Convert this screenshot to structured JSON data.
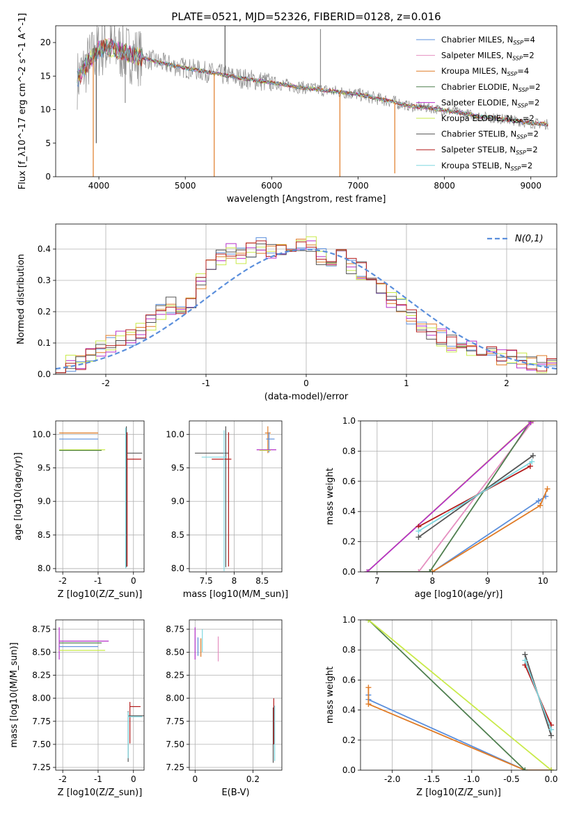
{
  "figure": {
    "title": "PLATE=0521, MJD=52326, FIBERID=0128, z=0.016"
  },
  "colors": {
    "chabrier_miles": "#5b8fdc",
    "salpeter_miles": "#e58fc0",
    "kroupa_miles": "#e07b26",
    "chabrier_elodie": "#4f7f4f",
    "salpeter_elodie": "#b52fc8",
    "kroupa_elodie": "#c9ea4a",
    "chabrier_stelib": "#555555",
    "salpeter_stelib": "#b31b1b",
    "kroupa_stelib": "#7fd8e0",
    "data": "#8a8a8a",
    "normal_curve": "#5b8fdc",
    "grid": "#b0b0b0"
  },
  "chart_data": [
    {
      "id": "spectrum",
      "type": "line",
      "xlabel": "wavelength [Angstrom, rest frame]",
      "ylabel": "Flux [f_λ10^-17 erg cm^-2 s^-1 A^-1]",
      "xlim": [
        3500,
        9300
      ],
      "ylim": [
        0,
        22.5
      ],
      "xticks": [
        4000,
        5000,
        6000,
        7000,
        8000,
        9000
      ],
      "yticks": [
        0,
        5,
        10,
        15,
        20
      ],
      "grid": false,
      "legend_position": "top-right",
      "series": [
        {
          "name": "Chabrier MILES, N_SSP=4",
          "color_key": "chabrier_miles"
        },
        {
          "name": "Salpeter MILES, N_SSP=2",
          "color_key": "salpeter_miles"
        },
        {
          "name": "Kroupa MILES, N_SSP=4",
          "color_key": "kroupa_miles"
        },
        {
          "name": "Chabrier ELODIE, N_SSP=2",
          "color_key": "chabrier_elodie"
        },
        {
          "name": "Salpeter ELODIE, N_SSP=2",
          "color_key": "salpeter_elodie"
        },
        {
          "name": "Kroupa ELODIE, N_SSP=2",
          "color_key": "kroupa_elodie"
        },
        {
          "name": "Chabrier STELIB, N_SSP=2",
          "color_key": "chabrier_stelib"
        },
        {
          "name": "Salpeter STELIB, N_SSP=2",
          "color_key": "salpeter_stelib"
        },
        {
          "name": "Kroupa STELIB, N_SSP=2",
          "color_key": "kroupa_stelib"
        }
      ],
      "continuum": {
        "x": [
          3750,
          3900,
          4000,
          4100,
          4200,
          4300,
          4500,
          4700,
          5000,
          5300,
          5600,
          6000,
          6300,
          6600,
          6800,
          7000,
          7200,
          7400,
          7600,
          7800,
          8000,
          8200,
          8400,
          8600,
          8800,
          9000,
          9200
        ],
        "y": [
          14.5,
          17.5,
          19.0,
          19.3,
          19.0,
          18.5,
          17.8,
          17.0,
          16.2,
          15.5,
          14.8,
          14.0,
          13.4,
          12.9,
          12.6,
          12.3,
          11.7,
          11.2,
          10.5,
          10.3,
          9.9,
          9.5,
          9.0,
          8.7,
          8.4,
          8.0,
          7.8
        ]
      },
      "spikes": [
        {
          "x": 3935,
          "y": 0,
          "color_key": "kroupa_miles"
        },
        {
          "x": 3970,
          "y": 5.0,
          "color_key": "chabrier_stelib"
        },
        {
          "x": 4305,
          "y": 11.0,
          "color_key": "data"
        },
        {
          "x": 5335,
          "y": 0,
          "color_key": "kroupa_miles"
        },
        {
          "x": 5460,
          "y": 22.5,
          "color_key": "chabrier_stelib"
        },
        {
          "x": 6565,
          "y": 22.0,
          "color_key": "data"
        },
        {
          "x": 6790,
          "y": 0,
          "color_key": "kroupa_miles"
        },
        {
          "x": 7425,
          "y": 0.5,
          "color_key": "kroupa_miles"
        }
      ]
    },
    {
      "id": "residuals",
      "type": "bar",
      "xlabel": "(data-model)/error",
      "ylabel": "Normed distribution",
      "xlim": [
        -2.5,
        2.5
      ],
      "ylim": [
        0,
        0.48
      ],
      "xticks": [
        -2,
        -1,
        0,
        1,
        2
      ],
      "yticks": [
        0.0,
        0.1,
        0.2,
        0.3,
        0.4
      ],
      "grid": true,
      "legend_position": "top-right",
      "curve_label": "N(0,1)",
      "bin_width": 0.1,
      "series_color_keys": [
        "chabrier_miles",
        "kroupa_miles",
        "salpeter_elodie",
        "kroupa_elodie",
        "chabrier_stelib",
        "salpeter_stelib"
      ],
      "histogram_centers": [
        -2.45,
        -2.35,
        -2.25,
        -2.15,
        -2.05,
        -1.95,
        -1.85,
        -1.75,
        -1.65,
        -1.55,
        -1.45,
        -1.35,
        -1.25,
        -1.15,
        -1.05,
        -0.95,
        -0.85,
        -0.75,
        -0.65,
        -0.55,
        -0.45,
        -0.35,
        -0.25,
        -0.15,
        -0.05,
        0.05,
        0.15,
        0.25,
        0.35,
        0.45,
        0.55,
        0.65,
        0.75,
        0.85,
        0.95,
        1.05,
        1.15,
        1.25,
        1.35,
        1.45,
        1.55,
        1.65,
        1.75,
        1.85,
        1.95,
        2.05,
        2.15,
        2.25,
        2.35,
        2.45
      ],
      "histogram_values": [
        0.03,
        0.035,
        0.045,
        0.06,
        0.08,
        0.1,
        0.11,
        0.12,
        0.14,
        0.16,
        0.2,
        0.22,
        0.2,
        0.24,
        0.3,
        0.34,
        0.37,
        0.4,
        0.38,
        0.4,
        0.41,
        0.4,
        0.4,
        0.38,
        0.42,
        0.41,
        0.38,
        0.36,
        0.37,
        0.35,
        0.33,
        0.3,
        0.28,
        0.24,
        0.22,
        0.18,
        0.16,
        0.14,
        0.12,
        0.1,
        0.09,
        0.08,
        0.07,
        0.07,
        0.06,
        0.05,
        0.04,
        0.035,
        0.03,
        0.025
      ]
    },
    {
      "id": "age_vs_Z",
      "type": "scatter",
      "xlabel": "Z [log10(Z/Z_sun)]",
      "ylabel": "age [log10(age/yr)]",
      "xlim": [
        -2.2,
        0.3
      ],
      "ylim": [
        7.95,
        10.2
      ],
      "xticks": [
        -2,
        -1,
        0
      ],
      "yticks": [
        8.0,
        8.5,
        9.0,
        9.5,
        10.0
      ],
      "grid": true,
      "points": [
        {
          "x": -2.1,
          "y": 10.02,
          "xerr": [
            0,
            1.1
          ],
          "color_key": "kroupa_miles"
        },
        {
          "x": -2.1,
          "y": 9.93,
          "xerr": [
            0,
            1.1
          ],
          "color_key": "chabrier_miles"
        },
        {
          "x": -2.1,
          "y": 9.77,
          "xerr": [
            0,
            1.3
          ],
          "color_key": "kroupa_elodie"
        },
        {
          "x": -2.1,
          "y": 9.76,
          "xerr": [
            0,
            1.2
          ],
          "color_key": "chabrier_elodie"
        },
        {
          "x": -0.2,
          "y": 9.72,
          "yerr": [
            1.7,
            0.4
          ],
          "xerr": [
            0,
            0.45
          ],
          "color_key": "chabrier_stelib"
        },
        {
          "x": -0.18,
          "y": 9.63,
          "yerr": [
            1.6,
            0.4
          ],
          "xerr": [
            0,
            0.4
          ],
          "color_key": "salpeter_stelib"
        },
        {
          "x": -0.22,
          "y": 9.7,
          "yerr": [
            1.7,
            0.4
          ],
          "color_key": "kroupa_stelib"
        }
      ]
    },
    {
      "id": "age_vs_mass",
      "type": "scatter",
      "xlabel": "mass [log10(M/M_sun)]",
      "ylabel": "",
      "xlim": [
        7.2,
        8.85
      ],
      "ylim": [
        7.95,
        10.2
      ],
      "xticks": [
        7.5,
        8.0,
        8.5
      ],
      "yticks": [
        8.0,
        8.5,
        9.0,
        9.5,
        10.0
      ],
      "grid": true,
      "points": [
        {
          "x": 7.85,
          "y": 9.72,
          "xerr": [
            0.55,
            0.05
          ],
          "yerr": [
            1.7,
            0.4
          ],
          "color_key": "chabrier_stelib"
        },
        {
          "x": 7.9,
          "y": 9.63,
          "xerr": [
            0.3,
            0.05
          ],
          "yerr": [
            1.6,
            0.4
          ],
          "color_key": "salpeter_stelib"
        },
        {
          "x": 7.82,
          "y": 9.66,
          "xerr": [
            0.4,
            0.05
          ],
          "yerr": [
            1.7,
            0.4
          ],
          "color_key": "kroupa_stelib"
        },
        {
          "x": 8.6,
          "y": 10.02,
          "xerr": [
            0.05,
            0.05
          ],
          "yerr": [
            0.3,
            0.1
          ],
          "color_key": "kroupa_miles"
        },
        {
          "x": 8.62,
          "y": 9.93,
          "xerr": [
            0.05,
            0.1
          ],
          "yerr": [
            0.2,
            0.1
          ],
          "color_key": "chabrier_miles"
        },
        {
          "x": 8.6,
          "y": 9.77,
          "xerr": [
            0.2,
            0.15
          ],
          "color_key": "salpeter_elodie"
        },
        {
          "x": 8.55,
          "y": 9.76,
          "xerr": [
            0.1,
            0.1
          ],
          "color_key": "kroupa_elodie"
        }
      ]
    },
    {
      "id": "mass_weight_vs_age",
      "type": "line",
      "xlabel": "age [log10(age/yr)]",
      "ylabel": "mass weight",
      "xlim": [
        6.7,
        10.25
      ],
      "ylim": [
        0,
        1.0
      ],
      "xticks": [
        7,
        8,
        9,
        10
      ],
      "yticks": [
        0.0,
        0.2,
        0.4,
        0.6,
        0.8,
        1.0
      ],
      "grid": true,
      "series": [
        {
          "color_key": "chabrier_miles",
          "x": [
            6.85,
            8.0,
            9.92,
            10.05
          ],
          "y": [
            0.0,
            0.0,
            0.47,
            0.5
          ]
        },
        {
          "color_key": "kroupa_miles",
          "x": [
            6.85,
            8.0,
            9.95,
            10.08
          ],
          "y": [
            0.0,
            0.0,
            0.44,
            0.55
          ]
        },
        {
          "color_key": "salpeter_miles",
          "x": [
            6.85,
            7.75,
            9.82
          ],
          "y": [
            0.0,
            0.0,
            1.0
          ]
        },
        {
          "color_key": "chabrier_elodie",
          "x": [
            6.85,
            7.95,
            9.78
          ],
          "y": [
            0.0,
            0.0,
            1.0
          ]
        },
        {
          "color_key": "kroupa_elodie",
          "x": [
            6.82,
            9.8
          ],
          "y": [
            0.0,
            1.0
          ]
        },
        {
          "color_key": "salpeter_elodie",
          "x": [
            6.82,
            9.78
          ],
          "y": [
            0.0,
            0.99
          ]
        },
        {
          "color_key": "chabrier_stelib",
          "x": [
            7.75,
            9.82
          ],
          "y": [
            0.23,
            0.77
          ]
        },
        {
          "color_key": "salpeter_stelib",
          "x": [
            7.75,
            9.77
          ],
          "y": [
            0.3,
            0.7
          ]
        },
        {
          "color_key": "kroupa_stelib",
          "x": [
            7.75,
            9.8
          ],
          "y": [
            0.27,
            0.73
          ]
        }
      ]
    },
    {
      "id": "mass_vs_Z",
      "type": "scatter",
      "xlabel": "Z [log10(Z/Z_sun)]",
      "ylabel": "mass [log10(M/M_sun)]",
      "xlim": [
        -2.2,
        0.3
      ],
      "ylim": [
        7.22,
        8.85
      ],
      "xticks": [
        -2,
        -1,
        0
      ],
      "yticks": [
        7.25,
        7.5,
        7.75,
        8.0,
        8.25,
        8.5,
        8.75
      ],
      "grid": true,
      "points": [
        {
          "x": -2.1,
          "y": 8.62,
          "xerr": [
            0,
            1.4
          ],
          "yerr": [
            0.2,
            0.15
          ],
          "color_key": "salpeter_elodie"
        },
        {
          "x": -2.1,
          "y": 8.56,
          "xerr": [
            0,
            1.1
          ],
          "color_key": "chabrier_miles"
        },
        {
          "x": -2.1,
          "y": 8.52,
          "xerr": [
            0,
            1.3
          ],
          "color_key": "kroupa_elodie"
        },
        {
          "x": -2.1,
          "y": 8.6,
          "xerr": [
            0,
            1.2
          ],
          "color_key": "chabrier_elodie"
        },
        {
          "x": -0.1,
          "y": 7.91,
          "xerr": [
            0,
            0.3
          ],
          "yerr": [
            0.4,
            0.05
          ],
          "color_key": "salpeter_stelib"
        },
        {
          "x": -0.15,
          "y": 7.81,
          "xerr": [
            0,
            0.45
          ],
          "yerr": [
            0.5,
            0.05
          ],
          "color_key": "chabrier_stelib"
        },
        {
          "x": -0.15,
          "y": 7.8,
          "xerr": [
            0,
            0.4
          ],
          "yerr": [
            0.45,
            0.05
          ],
          "color_key": "kroupa_stelib"
        }
      ]
    },
    {
      "id": "mass_vs_EBV",
      "type": "scatter",
      "xlabel": "E(B-V)",
      "ylabel": "",
      "xlim": [
        -0.02,
        0.3
      ],
      "ylim": [
        7.22,
        8.85
      ],
      "xticks": [
        0.0,
        0.2
      ],
      "yticks": [
        7.25,
        7.5,
        7.75,
        8.0,
        8.25,
        8.5,
        8.75
      ],
      "grid": true,
      "points": [
        {
          "x": 0.0,
          "y": 8.62,
          "yerr": [
            0.2,
            0.15
          ],
          "color_key": "salpeter_elodie"
        },
        {
          "x": 0.01,
          "y": 8.56,
          "yerr": [
            0.1,
            0.1
          ],
          "color_key": "chabrier_miles"
        },
        {
          "x": 0.02,
          "y": 8.55,
          "yerr": [
            0.1,
            0.1
          ],
          "color_key": "kroupa_miles"
        },
        {
          "x": 0.025,
          "y": 8.6,
          "yerr": [
            0.1,
            0.15
          ],
          "color_key": "kroupa_stelib"
        },
        {
          "x": 0.08,
          "y": 8.55,
          "yerr": [
            0.15,
            0.12
          ],
          "color_key": "salpeter_miles"
        },
        {
          "x": 0.27,
          "y": 7.8,
          "yerr": [
            0.5,
            0.1
          ],
          "color_key": "chabrier_stelib"
        },
        {
          "x": 0.275,
          "y": 7.82,
          "yerr": [
            0.5,
            0.1
          ],
          "color_key": "kroupa_stelib"
        },
        {
          "x": 0.272,
          "y": 7.9,
          "yerr": [
            0.4,
            0.1
          ],
          "color_key": "salpeter_stelib"
        }
      ]
    },
    {
      "id": "mass_weight_vs_Z",
      "type": "line",
      "xlabel": "Z [log10(Z/Z_sun)]",
      "ylabel": "mass weight",
      "xlim": [
        -2.4,
        0.07
      ],
      "ylim": [
        0,
        1.0
      ],
      "xticks": [
        -2.0,
        -1.5,
        -1.0,
        -0.5,
        0.0
      ],
      "yticks": [
        0.0,
        0.2,
        0.4,
        0.6,
        0.8,
        1.0
      ],
      "grid": true,
      "series": [
        {
          "color_key": "chabrier_miles",
          "x": [
            -2.3,
            -2.3,
            -0.33,
            0.0
          ],
          "y": [
            0.5,
            0.47,
            0.0,
            0.0
          ]
        },
        {
          "color_key": "kroupa_miles",
          "x": [
            -2.3,
            -2.3,
            -0.33,
            0.0
          ],
          "y": [
            0.55,
            0.44,
            0.0,
            0.0
          ]
        },
        {
          "color_key": "chabrier_elodie",
          "x": [
            -2.3,
            -0.33
          ],
          "y": [
            1.0,
            0.0
          ]
        },
        {
          "color_key": "kroupa_elodie",
          "x": [
            -2.3,
            0.0
          ],
          "y": [
            1.0,
            0.0
          ]
        },
        {
          "color_key": "chabrier_stelib",
          "x": [
            -0.33,
            0.0
          ],
          "y": [
            0.77,
            0.23
          ]
        },
        {
          "color_key": "salpeter_stelib",
          "x": [
            -0.33,
            0.0
          ],
          "y": [
            0.7,
            0.3
          ]
        },
        {
          "color_key": "kroupa_stelib",
          "x": [
            -0.33,
            0.0
          ],
          "y": [
            0.73,
            0.27
          ]
        }
      ]
    }
  ]
}
